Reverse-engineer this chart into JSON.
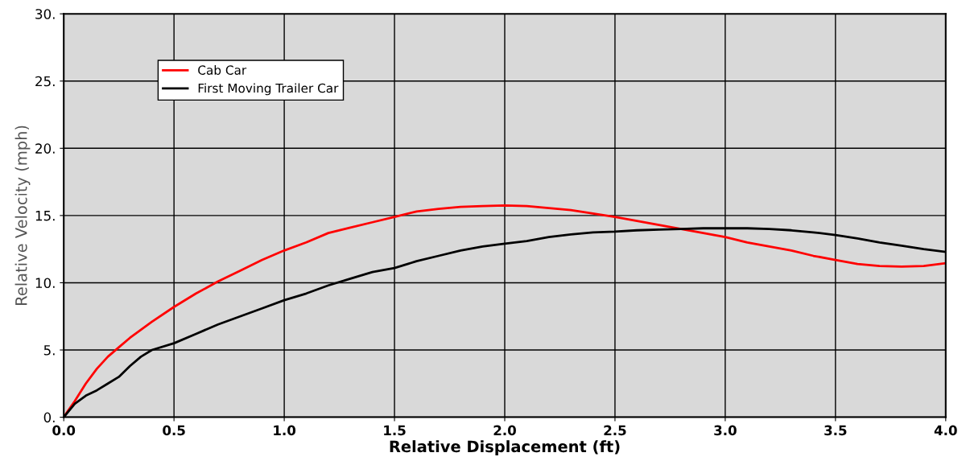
{
  "chart_data": {
    "type": "line",
    "xlabel": "Relative Displacement (ft)",
    "ylabel": "Relative Velocity (mph)",
    "xlim": [
      0,
      4
    ],
    "ylim": [
      0,
      30
    ],
    "xticks": [
      {
        "value": 0,
        "label": "0.0"
      },
      {
        "value": 0.5,
        "label": "0.5"
      },
      {
        "value": 1,
        "label": "1.0"
      },
      {
        "value": 1.5,
        "label": "1.5"
      },
      {
        "value": 2,
        "label": "2.0"
      },
      {
        "value": 2.5,
        "label": "2.5"
      },
      {
        "value": 3,
        "label": "3.0"
      },
      {
        "value": 3.5,
        "label": "3.5"
      },
      {
        "value": 4,
        "label": "4.0"
      }
    ],
    "yticks": [
      {
        "value": 0,
        "label": "0."
      },
      {
        "value": 5,
        "label": "5."
      },
      {
        "value": 10,
        "label": "10."
      },
      {
        "value": 15,
        "label": "15."
      },
      {
        "value": 20,
        "label": "20."
      },
      {
        "value": 25,
        "label": "25."
      },
      {
        "value": 30,
        "label": "30."
      }
    ],
    "grid": true,
    "legend": "top left",
    "marker": "none",
    "line_style": "solid",
    "series": [
      {
        "name": "Cab Car",
        "color": "#ff0000",
        "x": [
          0,
          0.02,
          0.05,
          0.1,
          0.15,
          0.2,
          0.25,
          0.3,
          0.4,
          0.5,
          0.6,
          0.7,
          0.8,
          0.9,
          1.0,
          1.1,
          1.2,
          1.3,
          1.4,
          1.5,
          1.6,
          1.7,
          1.8,
          1.9,
          2.0,
          2.1,
          2.2,
          2.3,
          2.4,
          2.5,
          2.6,
          2.7,
          2.8,
          2.9,
          3.0,
          3.1,
          3.2,
          3.3,
          3.4,
          3.5,
          3.6,
          3.7,
          3.8,
          3.9,
          4.0
        ],
        "values": [
          0,
          0.5,
          1.2,
          2.5,
          3.6,
          4.5,
          5.2,
          5.9,
          7.1,
          8.2,
          9.2,
          10.1,
          10.9,
          11.7,
          12.4,
          13.0,
          13.7,
          14.1,
          14.5,
          14.9,
          15.3,
          15.5,
          15.65,
          15.7,
          15.75,
          15.7,
          15.55,
          15.4,
          15.15,
          14.9,
          14.6,
          14.3,
          14.0,
          13.7,
          13.4,
          13.0,
          12.7,
          12.4,
          12.0,
          11.7,
          11.4,
          11.25,
          11.2,
          11.25,
          11.45
        ]
      },
      {
        "name": "First Moving Trailer Car",
        "color": "#000000",
        "x": [
          0,
          0.05,
          0.1,
          0.15,
          0.2,
          0.25,
          0.3,
          0.35,
          0.4,
          0.5,
          0.6,
          0.7,
          0.8,
          0.9,
          1.0,
          1.1,
          1.2,
          1.3,
          1.4,
          1.5,
          1.6,
          1.7,
          1.8,
          1.9,
          2.0,
          2.1,
          2.2,
          2.3,
          2.4,
          2.5,
          2.6,
          2.7,
          2.8,
          2.9,
          3.0,
          3.1,
          3.2,
          3.3,
          3.4,
          3.5,
          3.6,
          3.7,
          3.8,
          3.9,
          4.0
        ],
        "values": [
          0,
          1.0,
          1.6,
          2.0,
          2.5,
          3.0,
          3.8,
          4.5,
          5.0,
          5.5,
          6.2,
          6.9,
          7.5,
          8.1,
          8.7,
          9.2,
          9.8,
          10.3,
          10.8,
          11.1,
          11.6,
          12.0,
          12.4,
          12.7,
          12.9,
          13.1,
          13.4,
          13.6,
          13.75,
          13.8,
          13.9,
          13.95,
          14.0,
          14.05,
          14.05,
          14.05,
          14.0,
          13.9,
          13.75,
          13.55,
          13.3,
          13.0,
          12.75,
          12.5,
          12.3
        ]
      }
    ]
  }
}
